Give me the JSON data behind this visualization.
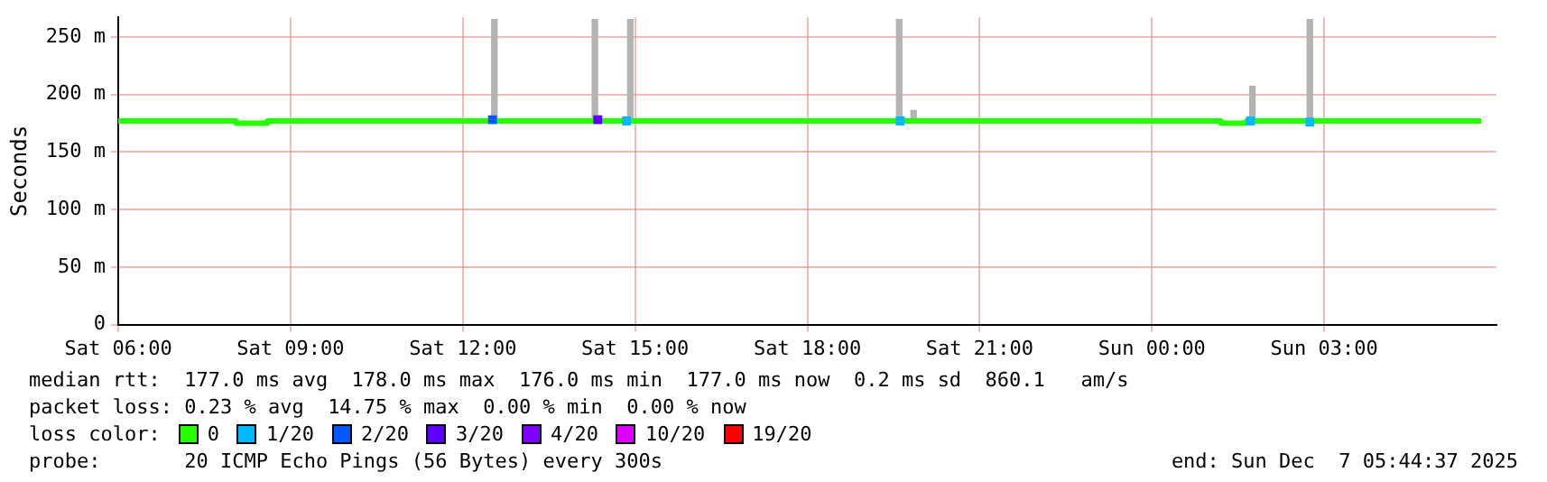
{
  "chart_data": {
    "type": "step",
    "ylabel": "Seconds",
    "xlim": [
      "2025-12-06T06:00",
      "2025-12-07T06:00"
    ],
    "ylim": [
      0,
      267
    ],
    "xticks": [
      {
        "value": "2025-12-06T06:00",
        "label": "Sat 06:00"
      },
      {
        "value": "2025-12-06T09:00",
        "label": "Sat 09:00"
      },
      {
        "value": "2025-12-06T12:00",
        "label": "Sat 12:00"
      },
      {
        "value": "2025-12-06T15:00",
        "label": "Sat 15:00"
      },
      {
        "value": "2025-12-06T18:00",
        "label": "Sat 18:00"
      },
      {
        "value": "2025-12-06T21:00",
        "label": "Sat 21:00"
      },
      {
        "value": "2025-12-07T00:00",
        "label": "Sun 00:00"
      },
      {
        "value": "2025-12-07T03:00",
        "label": "Sun 03:00"
      }
    ],
    "yticks": [
      {
        "value": 0,
        "label": "0"
      },
      {
        "value": 50,
        "label": "50 m"
      },
      {
        "value": 100,
        "label": "100 m"
      },
      {
        "value": 150,
        "label": "150 m"
      },
      {
        "value": 200,
        "label": "200 m"
      },
      {
        "value": 250,
        "label": "250 m"
      }
    ],
    "grid": true,
    "legend": "bottom",
    "legend_title": "loss color:",
    "series": [
      {
        "type": "bar",
        "color": "#b4b4b4",
        "x": [
          "2025-12-06T12:33",
          "2025-12-06T14:18",
          "2025-12-06T14:55",
          "2025-12-06T19:36",
          "2025-12-06T19:51",
          "2025-12-07T01:45",
          "2025-12-07T02:45"
        ],
        "base": [
          179,
          179,
          178,
          179,
          179,
          179,
          178
        ],
        "values": [
          86,
          86,
          87,
          86,
          7,
          28,
          87
        ]
      },
      {
        "name": "0",
        "color": "#26ff00",
        "x": [
          "2025-12-06T06:00",
          "2025-12-06T08:03",
          "2025-12-06T08:36",
          "2025-12-07T01:12",
          "2025-12-07T01:39",
          "2025-12-07T05:44"
        ],
        "values": [
          177,
          175,
          177,
          175,
          177,
          177
        ]
      },
      {
        "name": "1/20",
        "type": "scatter",
        "marker": "square",
        "color": "#00b8ff",
        "x": [
          "2025-12-06T14:51",
          "2025-12-06T19:37",
          "2025-12-07T01:43",
          "2025-12-07T02:45"
        ],
        "values": [
          177,
          177,
          177,
          176
        ]
      },
      {
        "name": "2/20",
        "type": "scatter",
        "marker": "square",
        "color": "#0059ff",
        "x": [
          "2025-12-06T12:31"
        ],
        "values": [
          178
        ]
      },
      {
        "name": "3/20",
        "type": "scatter",
        "marker": "square",
        "color": "#5e00ff",
        "x": [
          "2025-12-06T14:21"
        ],
        "values": [
          178
        ]
      },
      {
        "name": "4/20",
        "color": "#7e00ff"
      },
      {
        "name": "10/20",
        "color": "#dd00ff"
      },
      {
        "name": "19/20",
        "color": "#ff0000"
      }
    ],
    "annotations": [
      "median rtt:  177.0 ms avg  178.0 ms max  176.0 ms min  177.0 ms now  0.2 ms sd  860.1   am/s",
      "packet loss: 0.23 % avg  14.75 % max  0.00 % min  0.00 % now",
      "probe:       20 ICMP Echo Pings (56 Bytes) every 300s",
      "end: Sun Dec  7 05:44:37 2025"
    ]
  }
}
